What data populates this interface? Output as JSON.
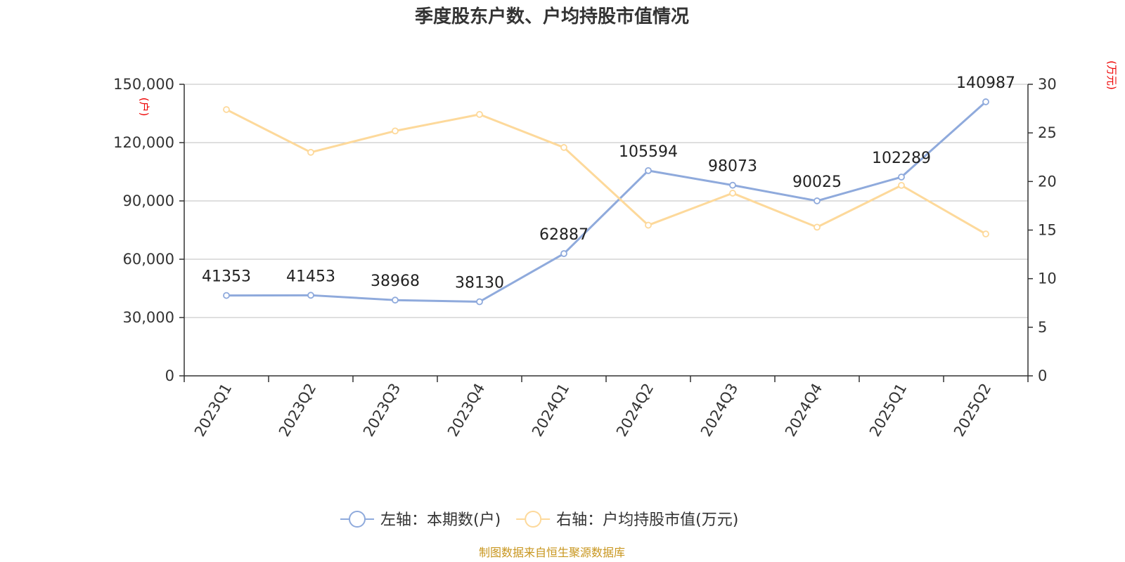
{
  "chart_data": {
    "type": "line",
    "title": "季度股东户数、户均持股市值情况",
    "categories": [
      "2023Q1",
      "2023Q2",
      "2023Q3",
      "2023Q4",
      "2024Q1",
      "2024Q2",
      "2024Q3",
      "2024Q4",
      "2025Q1",
      "2025Q2"
    ],
    "left_axis": {
      "unit": "(户)",
      "ylim": [
        0,
        150000
      ],
      "ticks": [
        "0",
        "30,000",
        "60,000",
        "90,000",
        "120,000",
        "150,000"
      ]
    },
    "right_axis": {
      "unit": "(万元)",
      "ylim": [
        0,
        30
      ],
      "ticks": [
        "0",
        "5",
        "10",
        "15",
        "20",
        "25",
        "30"
      ]
    },
    "grid": true,
    "legend_position": "bottom-center",
    "series": [
      {
        "name": "左轴：本期数(户)",
        "axis": "left",
        "color": "#8faadc",
        "values": [
          41353,
          41453,
          38968,
          38130,
          62887,
          105594,
          98073,
          90025,
          102289,
          140987
        ],
        "labels": [
          "41353",
          "41453",
          "38968",
          "38130",
          "62887",
          "105594",
          "98073",
          "90025",
          "102289",
          "140987"
        ]
      },
      {
        "name": "右轴：户均持股市值(万元)",
        "axis": "right",
        "color": "#fdd99b",
        "values": [
          27.4,
          23.0,
          25.2,
          26.9,
          23.5,
          15.5,
          18.8,
          15.3,
          19.6,
          14.6
        ]
      }
    ]
  },
  "source": "制图数据来自恒生聚源数据库"
}
